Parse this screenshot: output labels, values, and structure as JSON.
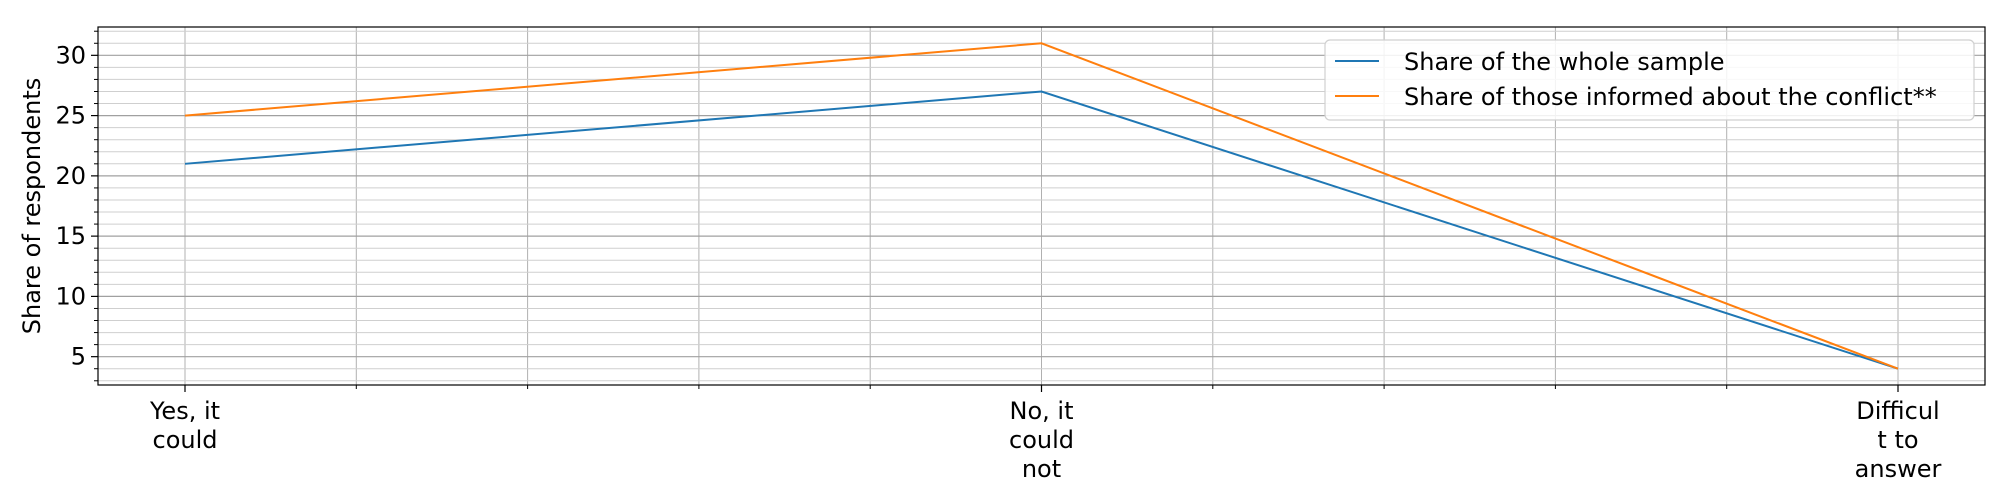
{
  "chart_data": {
    "type": "line",
    "title": "",
    "xlabel": "",
    "ylabel": "Share of respondents",
    "categories": [
      [
        "Yes, it",
        "could"
      ],
      [
        "No, it",
        "could",
        "not"
      ],
      [
        "Difficul",
        "t to",
        "answer"
      ]
    ],
    "series": [
      {
        "name": "Share of the whole sample",
        "values": [
          21,
          27,
          4
        ],
        "color": "#1f77b4"
      },
      {
        "name": "Share of those informed about the conflict**",
        "values": [
          25,
          31,
          4
        ],
        "color": "#ff7f0e"
      }
    ],
    "ylim": [
      2.65,
      32.35
    ],
    "yticks": [
      "5",
      "10",
      "15",
      "20",
      "25",
      "30"
    ],
    "grid": true,
    "legend_position": "top-right"
  }
}
